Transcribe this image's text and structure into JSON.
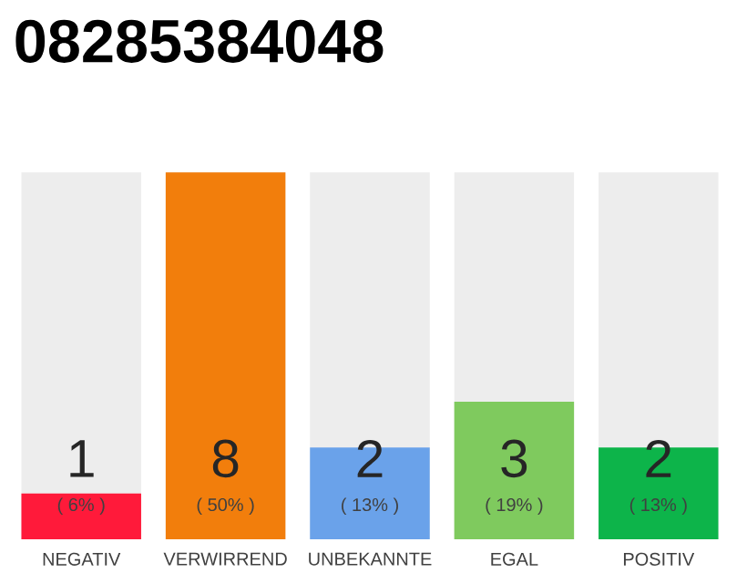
{
  "chart_data": {
    "type": "bar",
    "title": "08285384048",
    "categories": [
      "NEGATIV",
      "VERWIRREND",
      "UNBEKANNTE",
      "EGAL",
      "POSITIV"
    ],
    "values": [
      1,
      8,
      2,
      3,
      2
    ],
    "colors": [
      "#ff1a3a",
      "#f27e0c",
      "#6aa2ea",
      "#7fca5e",
      "#0db44a"
    ],
    "data_labels": true,
    "annotations": [
      "( 6% )",
      "( 50% )",
      "( 13% )",
      "( 19% )",
      "( 13% )"
    ]
  }
}
